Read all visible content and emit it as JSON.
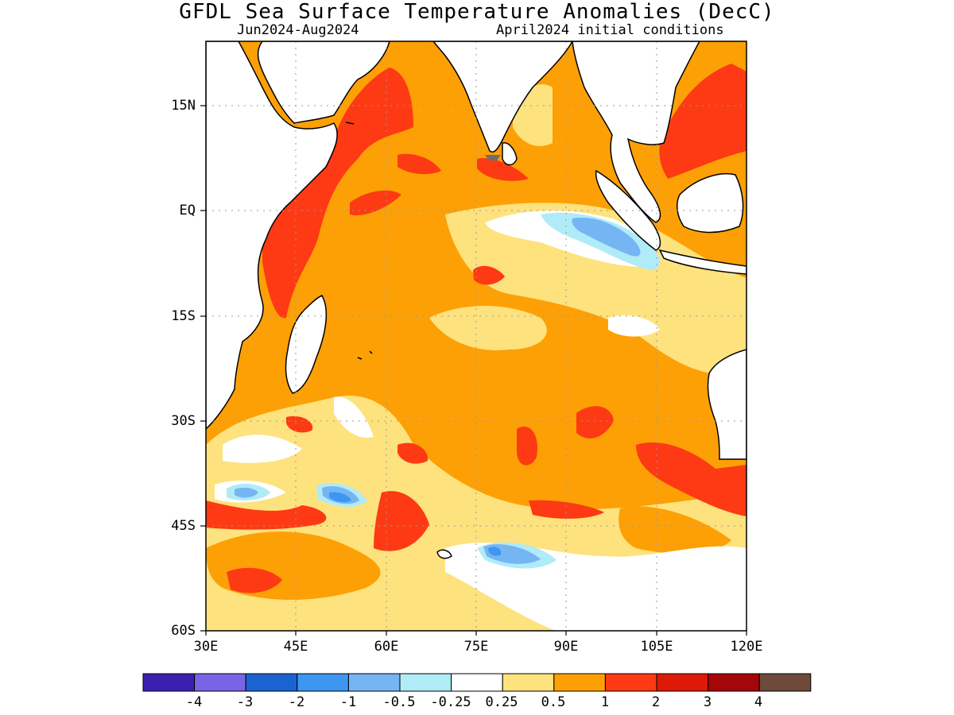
{
  "title": "GFDL Sea Surface Temperature Anomalies (DecC)",
  "subtitle_left": "Jun2024-Aug2024",
  "subtitle_right": "April2024 initial conditions",
  "lat_labels": [
    "15N",
    "EQ",
    "15S",
    "30S",
    "45S",
    "60S"
  ],
  "lon_labels": [
    "30E",
    "45E",
    "60E",
    "75E",
    "90E",
    "105E",
    "120E"
  ],
  "colorbar": {
    "colors": [
      "#3b1fb0",
      "#7a64e6",
      "#1b63d3",
      "#3d96f0",
      "#76b5f4",
      "#b0ebf8",
      "#ffffff",
      "#fde27e",
      "#fda006",
      "#fd3a14",
      "#dd1a08",
      "#a50609",
      "#6e4a3a"
    ],
    "labels": [
      "-4",
      "-3",
      "-2",
      "-1",
      "-0.5",
      "-0.25",
      "0.25",
      "0.5",
      "1",
      "2",
      "3",
      "4"
    ]
  },
  "legend_colors": {
    "land": "#ffffff",
    "coast": "#000000",
    "grid": "#9a9a9a"
  }
}
